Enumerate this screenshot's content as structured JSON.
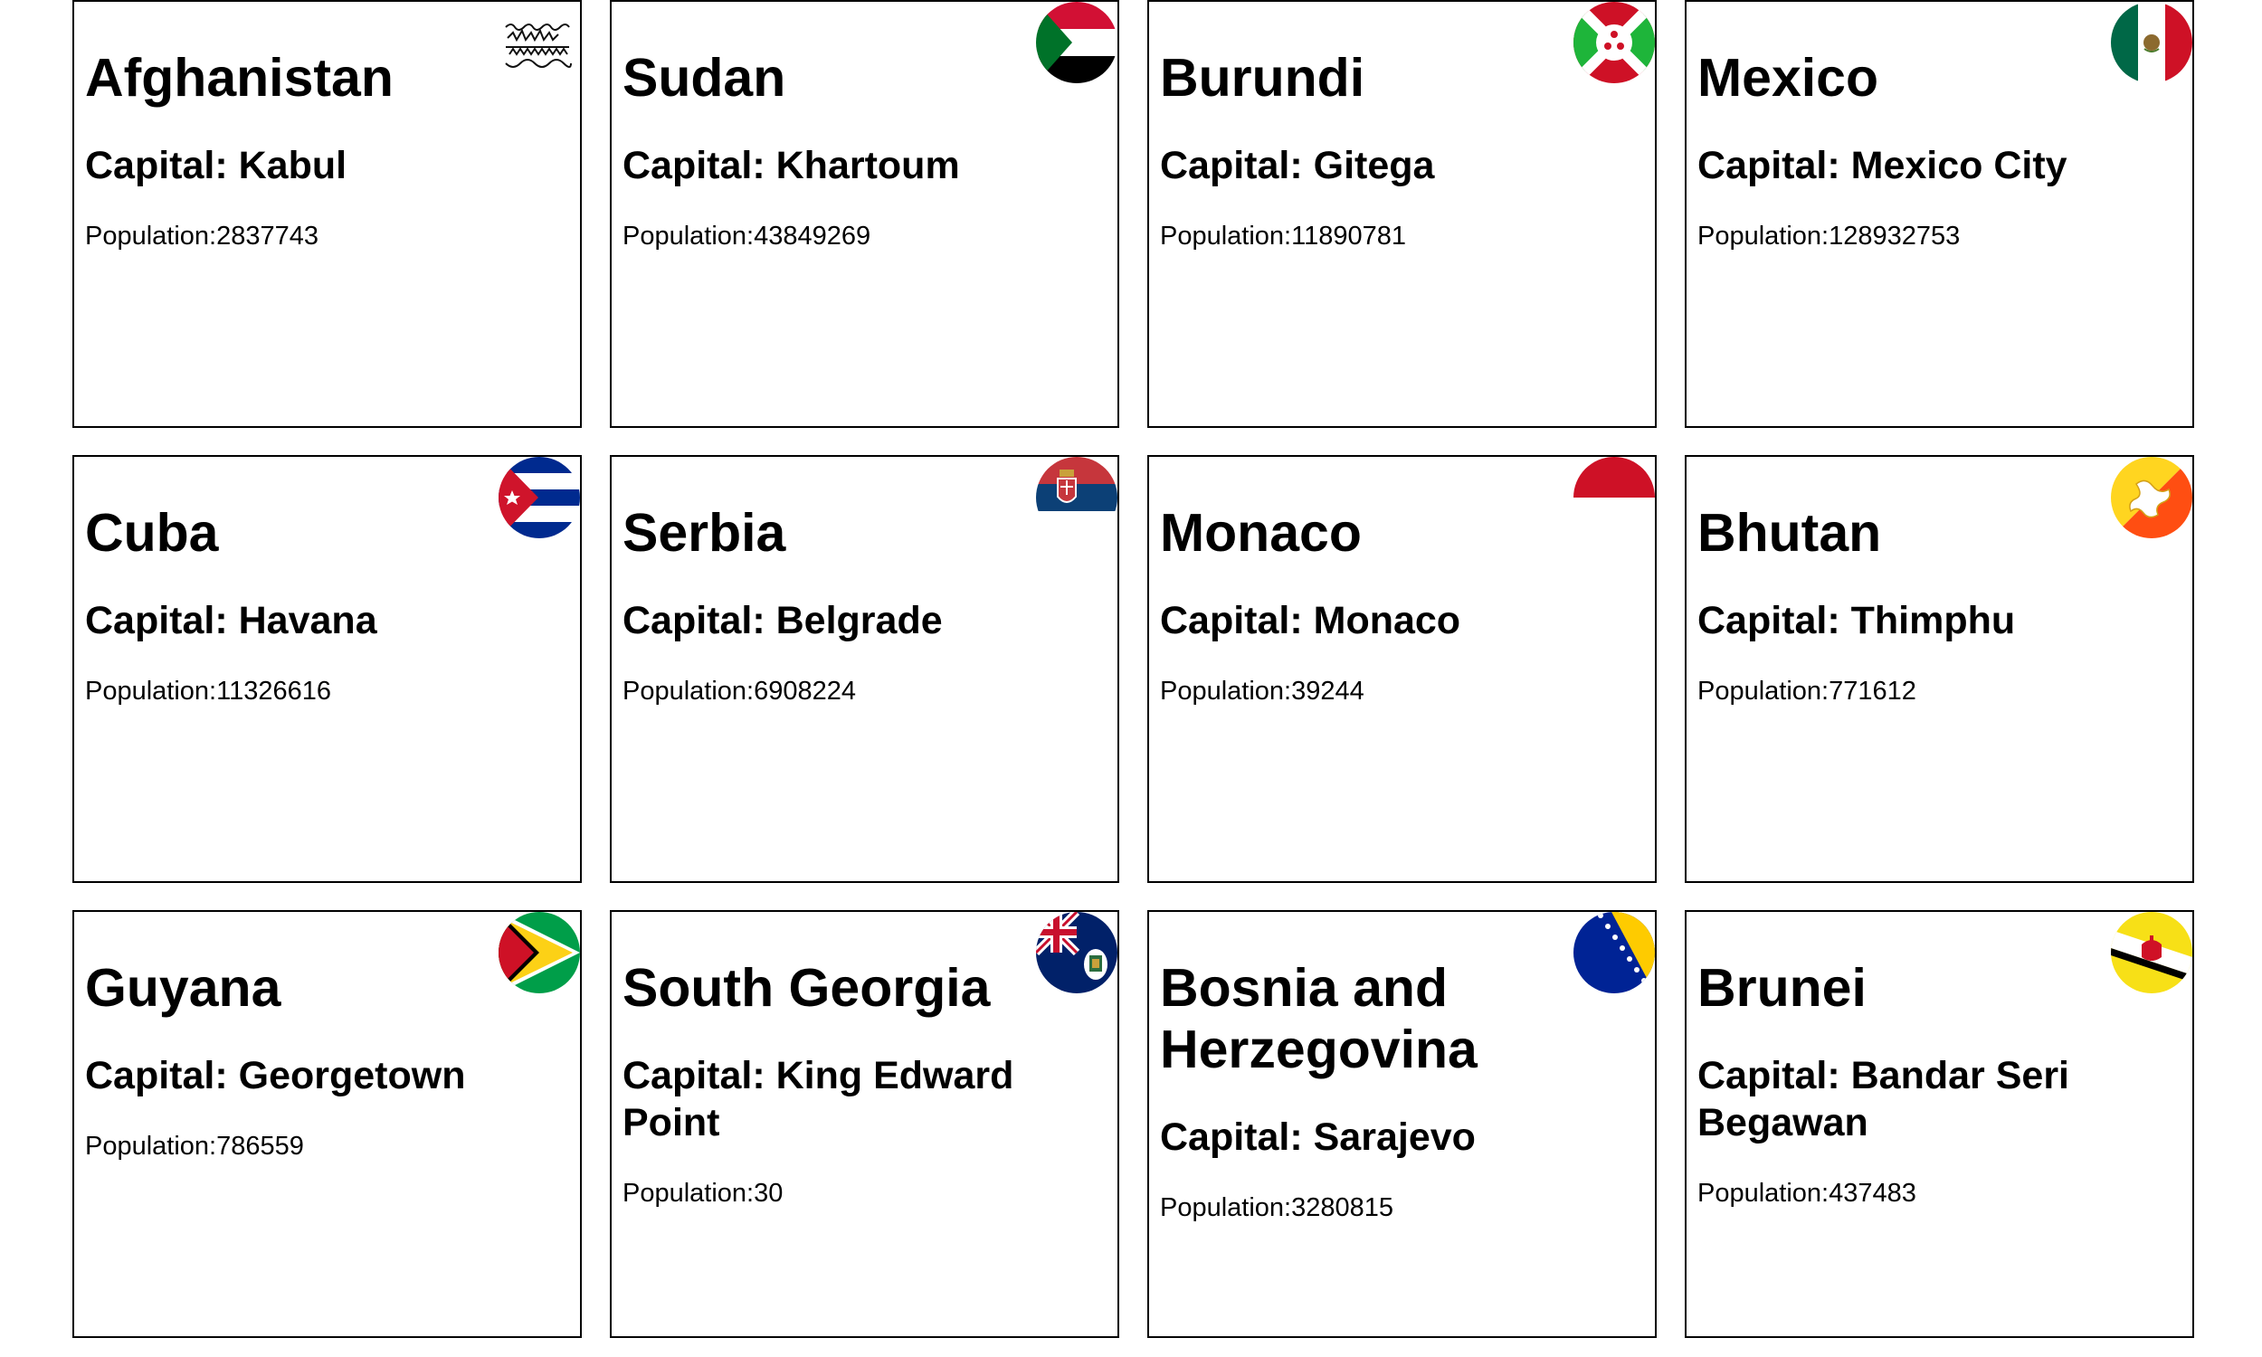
{
  "countries": [
    {
      "name": "Afghanistan",
      "capital": "Capital: Kabul",
      "population": "Population:2837743",
      "flag_icon": "afghanistan-flag-icon"
    },
    {
      "name": "Sudan",
      "capital": "Capital: Khartoum",
      "population": "Population:43849269",
      "flag_icon": "sudan-flag-icon"
    },
    {
      "name": "Burundi",
      "capital": "Capital: Gitega",
      "population": "Population:11890781",
      "flag_icon": "burundi-flag-icon"
    },
    {
      "name": "Mexico",
      "capital": "Capital: Mexico City",
      "population": "Population:128932753",
      "flag_icon": "mexico-flag-icon"
    },
    {
      "name": "Cuba",
      "capital": "Capital: Havana",
      "population": "Population:11326616",
      "flag_icon": "cuba-flag-icon"
    },
    {
      "name": "Serbia",
      "capital": "Capital: Belgrade",
      "population": "Population:6908224",
      "flag_icon": "serbia-flag-icon"
    },
    {
      "name": "Monaco",
      "capital": "Capital: Monaco",
      "population": "Population:39244",
      "flag_icon": "monaco-flag-icon"
    },
    {
      "name": "Bhutan",
      "capital": "Capital: Thimphu",
      "population": "Population:771612",
      "flag_icon": "bhutan-flag-icon"
    },
    {
      "name": "Guyana",
      "capital": "Capital: Georgetown",
      "population": "Population:786559",
      "flag_icon": "guyana-flag-icon"
    },
    {
      "name": "South Georgia",
      "capital": "Capital: King Edward Point",
      "population": "Population:30",
      "flag_icon": "south-georgia-flag-icon"
    },
    {
      "name": "Bosnia and Herzegovina",
      "capital": "Capital: Sarajevo",
      "population": "Population:3280815",
      "flag_icon": "bosnia-flag-icon"
    },
    {
      "name": "Brunei",
      "capital": "Capital: Bandar Seri Begawan",
      "population": "Population:437483",
      "flag_icon": "brunei-flag-icon"
    }
  ]
}
